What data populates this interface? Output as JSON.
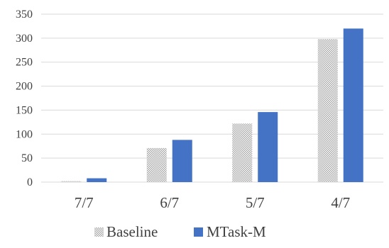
{
  "chart_data": {
    "type": "bar",
    "title": "",
    "xlabel": "",
    "ylabel": "",
    "categories": [
      "7/7",
      "6/7",
      "5/7",
      "4/7"
    ],
    "series": [
      {
        "name": "Baseline",
        "values": [
          2,
          71,
          122,
          298
        ],
        "pattern": "dotted-gray"
      },
      {
        "name": "MTask-M",
        "values": [
          8,
          88,
          146,
          320
        ],
        "color": "#4472C4"
      }
    ],
    "ylim": [
      0,
      350
    ],
    "yticks": [
      0,
      50,
      100,
      150,
      200,
      250,
      300,
      350
    ],
    "grid": true,
    "legend": "bottom"
  },
  "colors": {
    "baseline_dots": "#a6a6a6",
    "mtask": "#4472C4",
    "grid": "#d9d9d9",
    "axis": "#d9d9d9"
  }
}
